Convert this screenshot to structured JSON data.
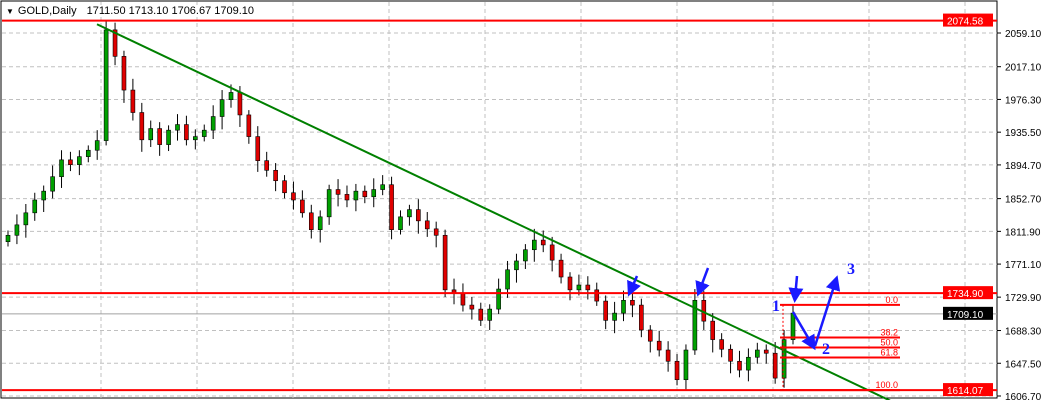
{
  "chart_data": {
    "type": "candlestick",
    "symbol": "GOLD,Daily",
    "ohlc_header": [
      "1711.50",
      "1713.10",
      "1706.67",
      "1709.10"
    ],
    "y_ticks": [
      "2059.10",
      "2017.10",
      "1976.30",
      "1935.50",
      "1894.70",
      "1852.70",
      "1811.90",
      "1771.10",
      "1729.90",
      "1688.30",
      "1647.50",
      "1606.70"
    ],
    "ylim": [
      1601,
      2085
    ],
    "closes": [
      1807,
      1820,
      1835,
      1851,
      1862,
      1880,
      1901,
      1895,
      1905,
      1913,
      1925,
      2063,
      2030,
      1988,
      1960,
      1926,
      1940,
      1920,
      1938,
      1945,
      1926,
      1930,
      1938,
      1955,
      1976,
      1985,
      1957,
      1930,
      1900,
      1888,
      1875,
      1860,
      1851,
      1835,
      1814,
      1830,
      1864,
      1858,
      1851,
      1862,
      1855,
      1864,
      1870,
      1814,
      1830,
      1839,
      1825,
      1815,
      1807,
      1739,
      1735,
      1720,
      1715,
      1701,
      1715,
      1740,
      1764,
      1775,
      1789,
      1801,
      1795,
      1776,
      1755,
      1739,
      1745,
      1739,
      1725,
      1701,
      1710,
      1726,
      1720,
      1689,
      1675,
      1664,
      1650,
      1627,
      1664,
      1726,
      1700,
      1677,
      1665,
      1650,
      1639,
      1655,
      1664,
      1660,
      1629,
      1677,
      1710
    ],
    "horizontal_levels": [
      {
        "price": 2074.58,
        "label": "2074.58",
        "color": "#ff0000"
      },
      {
        "price": 1734.9,
        "label": "1734.90",
        "color": "#ff0000"
      },
      {
        "price": 1614.07,
        "label": "1614.07",
        "color": "#ff0000"
      }
    ],
    "current_price": {
      "price": 1709.1,
      "label": "1709.10"
    },
    "trendline": {
      "from_price": 2070,
      "to_price": 1601,
      "color": "#008000"
    },
    "fibonacci": {
      "high": 1720.2,
      "low": 1614.07,
      "levels": [
        {
          "ratio": 0,
          "label": "0.0"
        },
        {
          "ratio": 0.382,
          "label": "38.2"
        },
        {
          "ratio": 0.5,
          "label": "50.0"
        },
        {
          "ratio": 0.618,
          "label": "61.8"
        },
        {
          "ratio": 1,
          "label": "100.0"
        }
      ],
      "color": "#ff0000"
    },
    "annotations": [
      "1",
      "2",
      "3"
    ],
    "colors": {
      "up": "#00a000",
      "down": "#e00000",
      "wick": "#000000",
      "arrow": "#1a1aff",
      "grid": "#c0c0c0"
    }
  }
}
